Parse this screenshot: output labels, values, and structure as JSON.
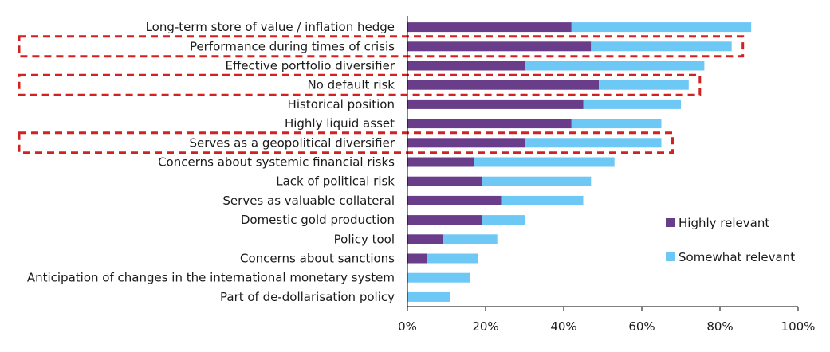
{
  "chart_data": {
    "type": "bar",
    "orientation": "horizontal",
    "stacked": true,
    "title": "",
    "xlabel": "",
    "ylabel": "",
    "xlim": [
      0,
      100
    ],
    "x_ticks": [
      "0%",
      "20%",
      "40%",
      "60%",
      "80%",
      "100%"
    ],
    "grid": false,
    "legend_position": "bottom-right",
    "categories": [
      "Long-term store of value / inflation hedge",
      "Performance during times of crisis",
      "Effective portfolio diversifier",
      "No default risk",
      "Historical position",
      "Highly liquid asset",
      "Serves as a geopolitical diversifier",
      "Concerns about systemic financial risks",
      "Lack of political risk",
      "Serves as valuable collateral",
      "Domestic gold production",
      "Policy tool",
      "Concerns about sanctions",
      "Anticipation of changes in the international monetary system",
      "Part of de-dollarisation policy"
    ],
    "series": [
      {
        "name": "Highly relevant",
        "color": "#6a3d8a",
        "values": [
          42,
          47,
          30,
          49,
          45,
          42,
          30,
          17,
          19,
          24,
          19,
          9,
          5,
          0,
          0
        ]
      },
      {
        "name": "Somewhat relevant",
        "color": "#6ec8f5",
        "values": [
          46,
          36,
          46,
          23,
          25,
          23,
          35,
          36,
          28,
          21,
          11,
          14,
          13,
          16,
          11
        ]
      }
    ],
    "highlighted_categories": [
      "Performance during times of crisis",
      "No default risk",
      "Serves as a geopolitical diversifier"
    ],
    "highlight_color": "#d32020"
  }
}
